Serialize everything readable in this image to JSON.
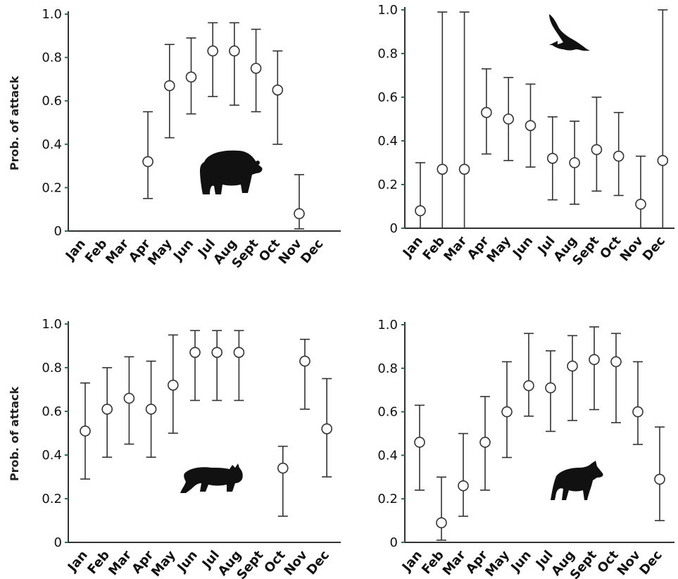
{
  "ylabel": "Prob. of attack",
  "months": [
    "Jan",
    "Feb",
    "Mar",
    "Apr",
    "May",
    "Jun",
    "Jul",
    "Aug",
    "Sept",
    "Oct",
    "Nov",
    "Dec"
  ],
  "yticks": [
    "0",
    "0.2",
    "0.4",
    "0.6",
    "0.8",
    "1.0"
  ],
  "chart_data": [
    {
      "type": "scatter",
      "animal_icon": "bear-icon",
      "x": [
        "Jan",
        "Feb",
        "Mar",
        "Apr",
        "May",
        "Jun",
        "Jul",
        "Aug",
        "Sept",
        "Oct",
        "Nov",
        "Dec"
      ],
      "y": [
        null,
        null,
        null,
        0.32,
        0.67,
        0.71,
        0.83,
        0.83,
        0.75,
        0.65,
        0.08,
        null
      ],
      "lower": [
        null,
        null,
        null,
        0.15,
        0.43,
        0.54,
        0.62,
        0.58,
        0.55,
        0.4,
        0.01,
        null
      ],
      "upper": [
        null,
        null,
        null,
        0.55,
        0.86,
        0.89,
        0.96,
        0.96,
        0.93,
        0.83,
        0.26,
        null
      ],
      "ylim": [
        0,
        1.0
      ],
      "ylabel": "Prob. of attack"
    },
    {
      "type": "scatter",
      "animal_icon": "eagle-icon",
      "x": [
        "Jan",
        "Feb",
        "Mar",
        "Apr",
        "May",
        "Jun",
        "Jul",
        "Aug",
        "Sept",
        "Oct",
        "Nov",
        "Dec"
      ],
      "y": [
        0.08,
        0.27,
        0.27,
        0.53,
        0.5,
        0.47,
        0.32,
        0.3,
        0.36,
        0.33,
        0.11,
        0.31
      ],
      "lower": [
        0.0,
        0.0,
        0.0,
        0.34,
        0.31,
        0.28,
        0.13,
        0.11,
        0.17,
        0.15,
        0.0,
        0.0
      ],
      "upper": [
        0.3,
        0.99,
        0.99,
        0.73,
        0.69,
        0.66,
        0.51,
        0.49,
        0.6,
        0.53,
        0.33,
        1.0
      ],
      "ylim": [
        0,
        1.0
      ],
      "ylabel": ""
    },
    {
      "type": "scatter",
      "animal_icon": "lynx-icon",
      "x": [
        "Jan",
        "Feb",
        "Mar",
        "Apr",
        "May",
        "Jun",
        "Jul",
        "Aug",
        "Sept",
        "Oct",
        "Nov",
        "Dec"
      ],
      "y": [
        0.51,
        0.61,
        0.66,
        0.61,
        0.72,
        0.87,
        0.87,
        0.87,
        null,
        0.34,
        0.83,
        0.52
      ],
      "lower": [
        0.29,
        0.39,
        0.45,
        0.39,
        0.5,
        0.65,
        0.65,
        0.65,
        null,
        0.12,
        0.61,
        0.3
      ],
      "upper": [
        0.73,
        0.8,
        0.85,
        0.83,
        0.95,
        0.97,
        0.97,
        0.97,
        null,
        0.44,
        0.93,
        0.75
      ],
      "ylim": [
        0,
        1.0
      ],
      "ylabel": "Prob. of attack"
    },
    {
      "type": "scatter",
      "animal_icon": "wolf-icon",
      "x": [
        "Jan",
        "Feb",
        "Mar",
        "Apr",
        "May",
        "Jun",
        "Jul",
        "Aug",
        "Sept",
        "Oct",
        "Nov",
        "Dec"
      ],
      "y": [
        0.46,
        0.09,
        0.26,
        0.46,
        0.6,
        0.72,
        0.71,
        0.81,
        0.84,
        0.83,
        0.6,
        0.29
      ],
      "lower": [
        0.24,
        0.01,
        0.12,
        0.24,
        0.39,
        0.58,
        0.51,
        0.56,
        0.61,
        0.55,
        0.45,
        0.1
      ],
      "upper": [
        0.63,
        0.3,
        0.5,
        0.67,
        0.83,
        0.96,
        0.88,
        0.95,
        0.99,
        0.96,
        0.83,
        0.53
      ],
      "ylim": [
        0,
        1.0
      ],
      "ylabel": ""
    }
  ]
}
